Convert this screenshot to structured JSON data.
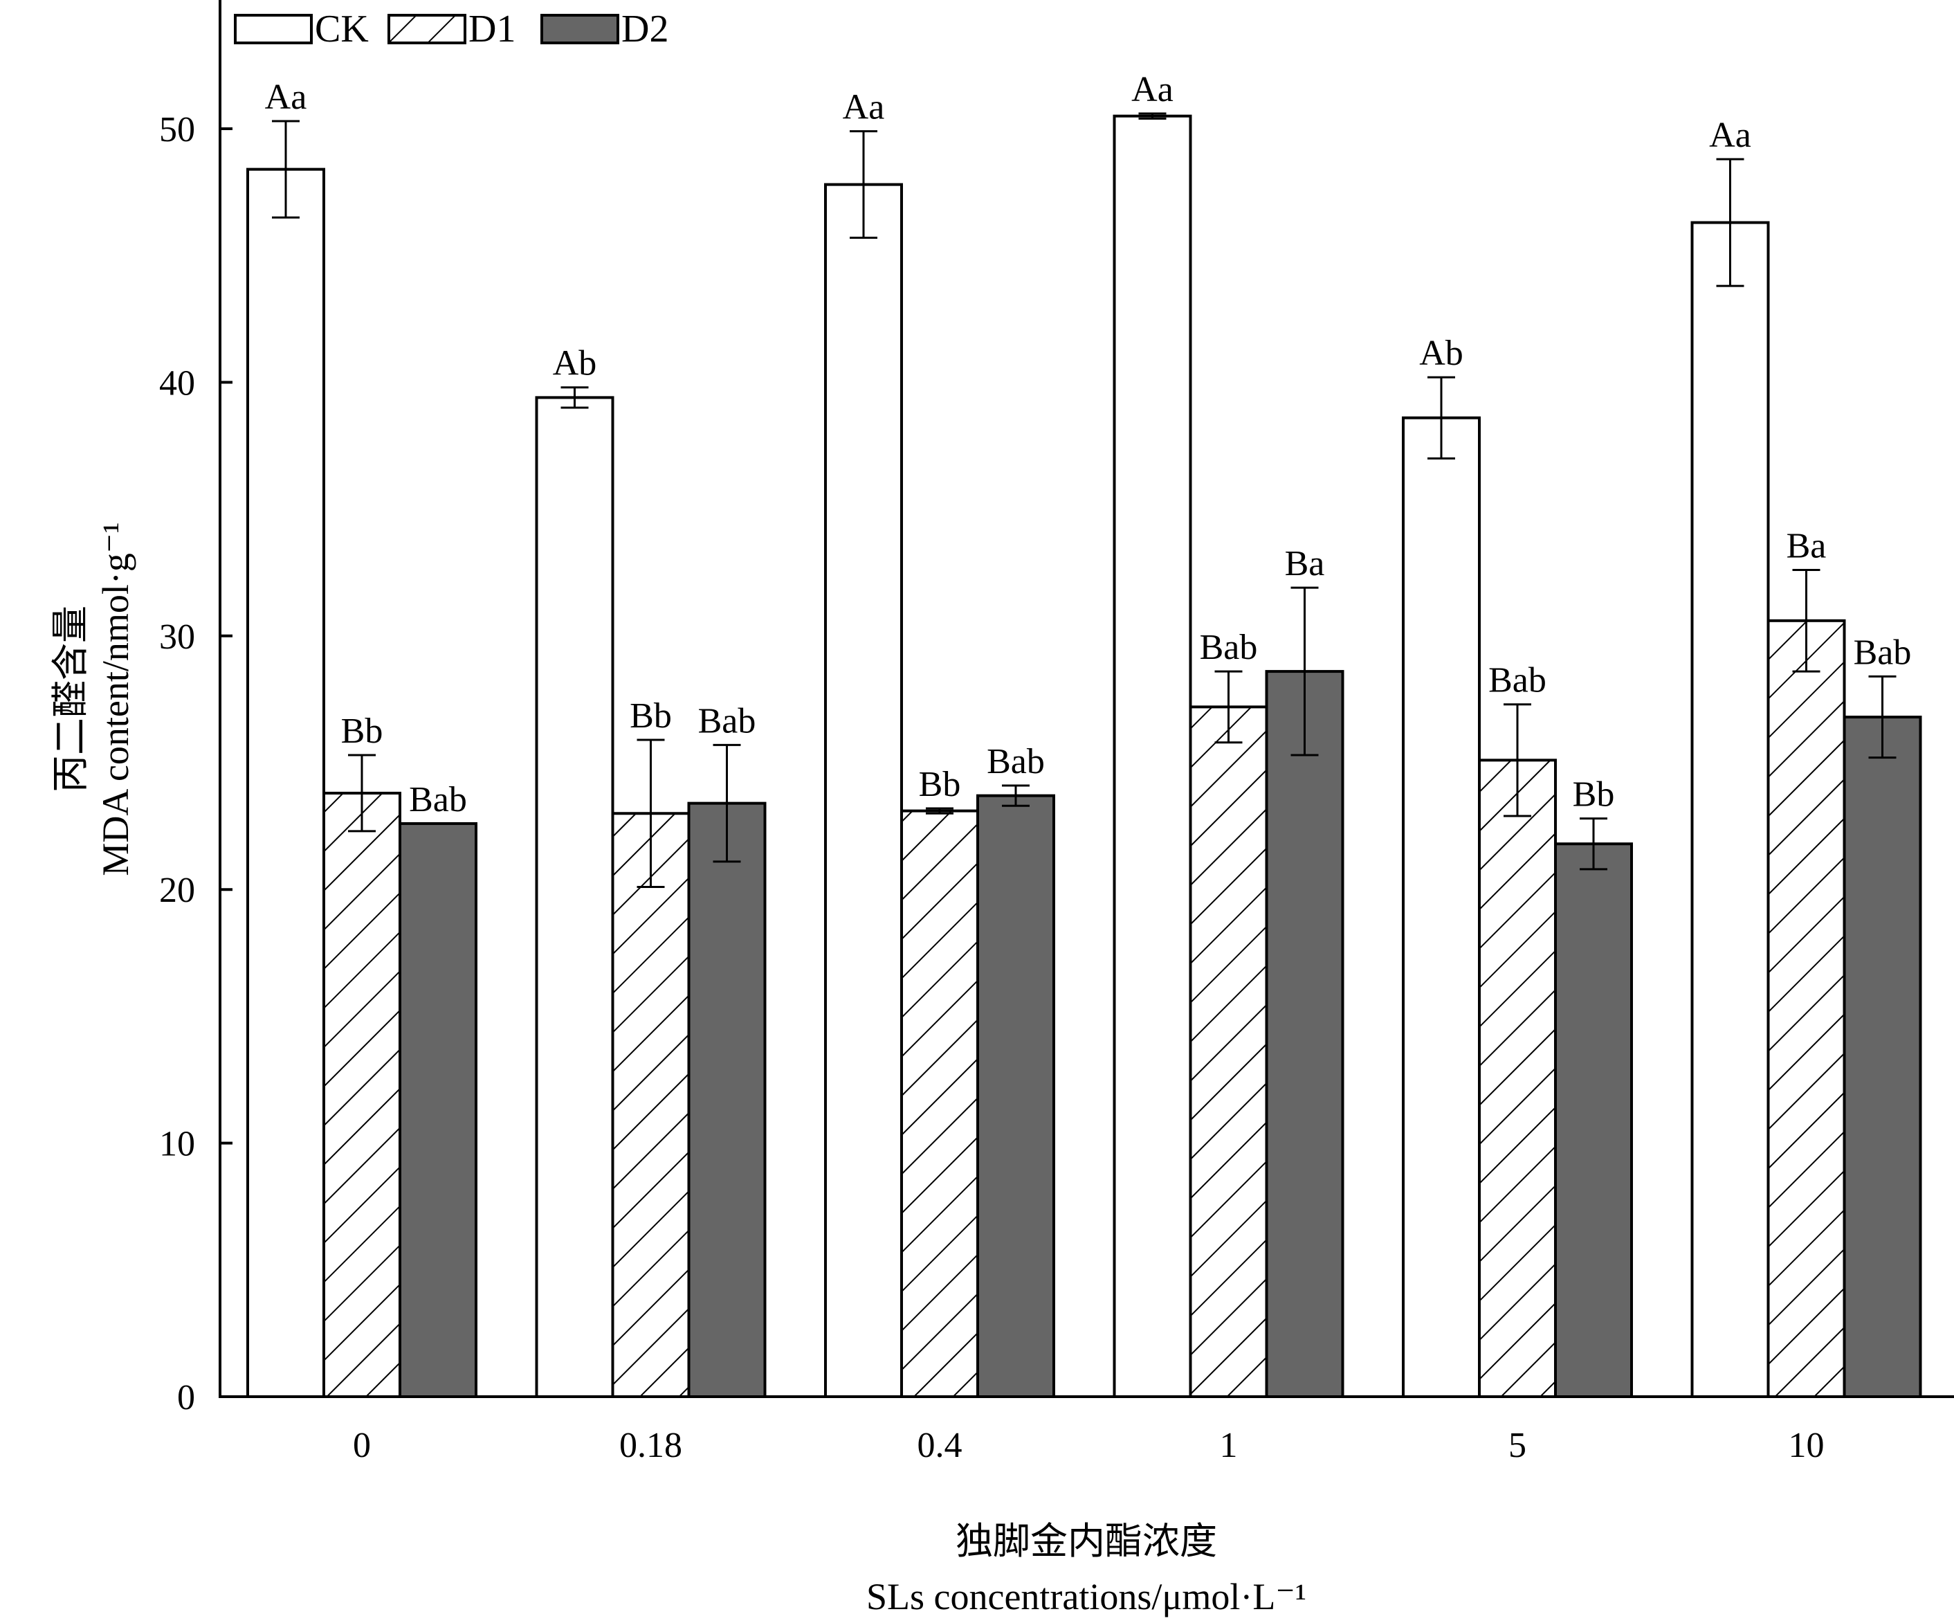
{
  "chart_data": {
    "type": "bar",
    "xlabel_cn": "独脚金内酯浓度",
    "xlabel_en": "SLs concentrations/μmol·L⁻¹",
    "ylabel_cn": "丙二醛含量",
    "ylabel_en": "MDA content/nmol·g⁻¹",
    "ylim": [
      0,
      55
    ],
    "yticks": [
      0,
      10,
      20,
      30,
      40,
      50
    ],
    "categories": [
      "0",
      "0.18",
      "0.4",
      "1",
      "5",
      "10"
    ],
    "legend_position": "top-left",
    "series": [
      {
        "name": "CK",
        "style": "white",
        "values": [
          48.4,
          39.4,
          47.8,
          50.5,
          38.6,
          46.3
        ],
        "errors": [
          1.9,
          0.4,
          2.1,
          0.1,
          1.6,
          2.5
        ],
        "labels": [
          "Aa",
          "Ab",
          "Aa",
          "Aa",
          "Ab",
          "Aa"
        ]
      },
      {
        "name": "D1",
        "style": "hatch",
        "values": [
          23.8,
          23.0,
          23.1,
          27.2,
          25.1,
          30.6
        ],
        "errors": [
          1.5,
          2.9,
          0.1,
          1.4,
          2.2,
          2.0
        ],
        "labels": [
          "Bb",
          "Bb",
          "Bb",
          "Bab",
          "Bab",
          "Ba"
        ]
      },
      {
        "name": "D2",
        "style": "gray",
        "values": [
          22.6,
          23.4,
          23.7,
          28.6,
          21.8,
          26.8
        ],
        "errors": [
          0.0,
          2.3,
          0.4,
          3.3,
          1.0,
          1.6
        ],
        "labels": [
          "Bab",
          "Bab",
          "Bab",
          "Ba",
          "Bb",
          "Bab"
        ]
      }
    ],
    "colors": {
      "white": "#ffffff",
      "gray": "#666666",
      "stroke": "#000000"
    }
  }
}
